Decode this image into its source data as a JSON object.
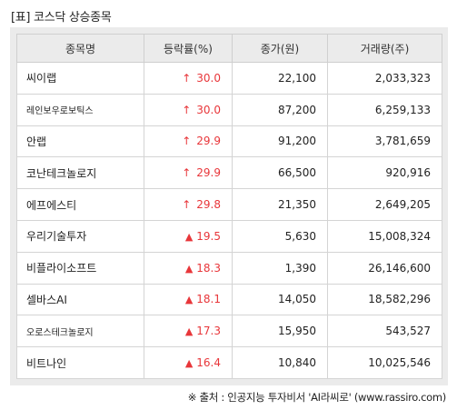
{
  "title": "[표] 코스닥 상승종목",
  "headers": [
    "종목명",
    "등락률(%)",
    "종가(원)",
    "거래량(주)"
  ],
  "rise_color": "#e8363a",
  "rows": [
    {
      "name": "씨이랩",
      "icon": "thin-up-arrow-icon",
      "arrow": "↑",
      "rate": "30.0",
      "price": "22,100",
      "volume": "2,033,323"
    },
    {
      "name": "레인보우로보틱스",
      "icon": "thin-up-arrow-icon",
      "arrow": "↑",
      "rate": "30.0",
      "price": "87,200",
      "volume": "6,259,133"
    },
    {
      "name": "안랩",
      "icon": "thin-up-arrow-icon",
      "arrow": "↑",
      "rate": "29.9",
      "price": "91,200",
      "volume": "3,781,659"
    },
    {
      "name": "코난테크놀로지",
      "icon": "thin-up-arrow-icon",
      "arrow": "↑",
      "rate": "29.9",
      "price": "66,500",
      "volume": "920,916"
    },
    {
      "name": "에프에스티",
      "icon": "thin-up-arrow-icon",
      "arrow": "↑",
      "rate": "29.8",
      "price": "21,350",
      "volume": "2,649,205"
    },
    {
      "name": "우리기술투자",
      "icon": "red-triangle-up-icon",
      "arrow": "▲",
      "rate": "19.5",
      "price": "5,630",
      "volume": "15,008,324"
    },
    {
      "name": "비플라이소프트",
      "icon": "red-triangle-up-icon",
      "arrow": "▲",
      "rate": "18.3",
      "price": "1,390",
      "volume": "26,146,600"
    },
    {
      "name": "셀바스AI",
      "icon": "red-triangle-up-icon",
      "arrow": "▲",
      "rate": "18.1",
      "price": "14,050",
      "volume": "18,582,296"
    },
    {
      "name": "오로스테크놀로지",
      "icon": "red-triangle-up-icon",
      "arrow": "▲",
      "rate": "17.3",
      "price": "15,950",
      "volume": "543,527"
    },
    {
      "name": "비트나인",
      "icon": "red-triangle-up-icon",
      "arrow": "▲",
      "rate": "16.4",
      "price": "10,840",
      "volume": "10,025,546"
    }
  ],
  "footer": "※ 출처 : 인공지능 투자비서 'AI라씨로' (www.rassiro.com)"
}
